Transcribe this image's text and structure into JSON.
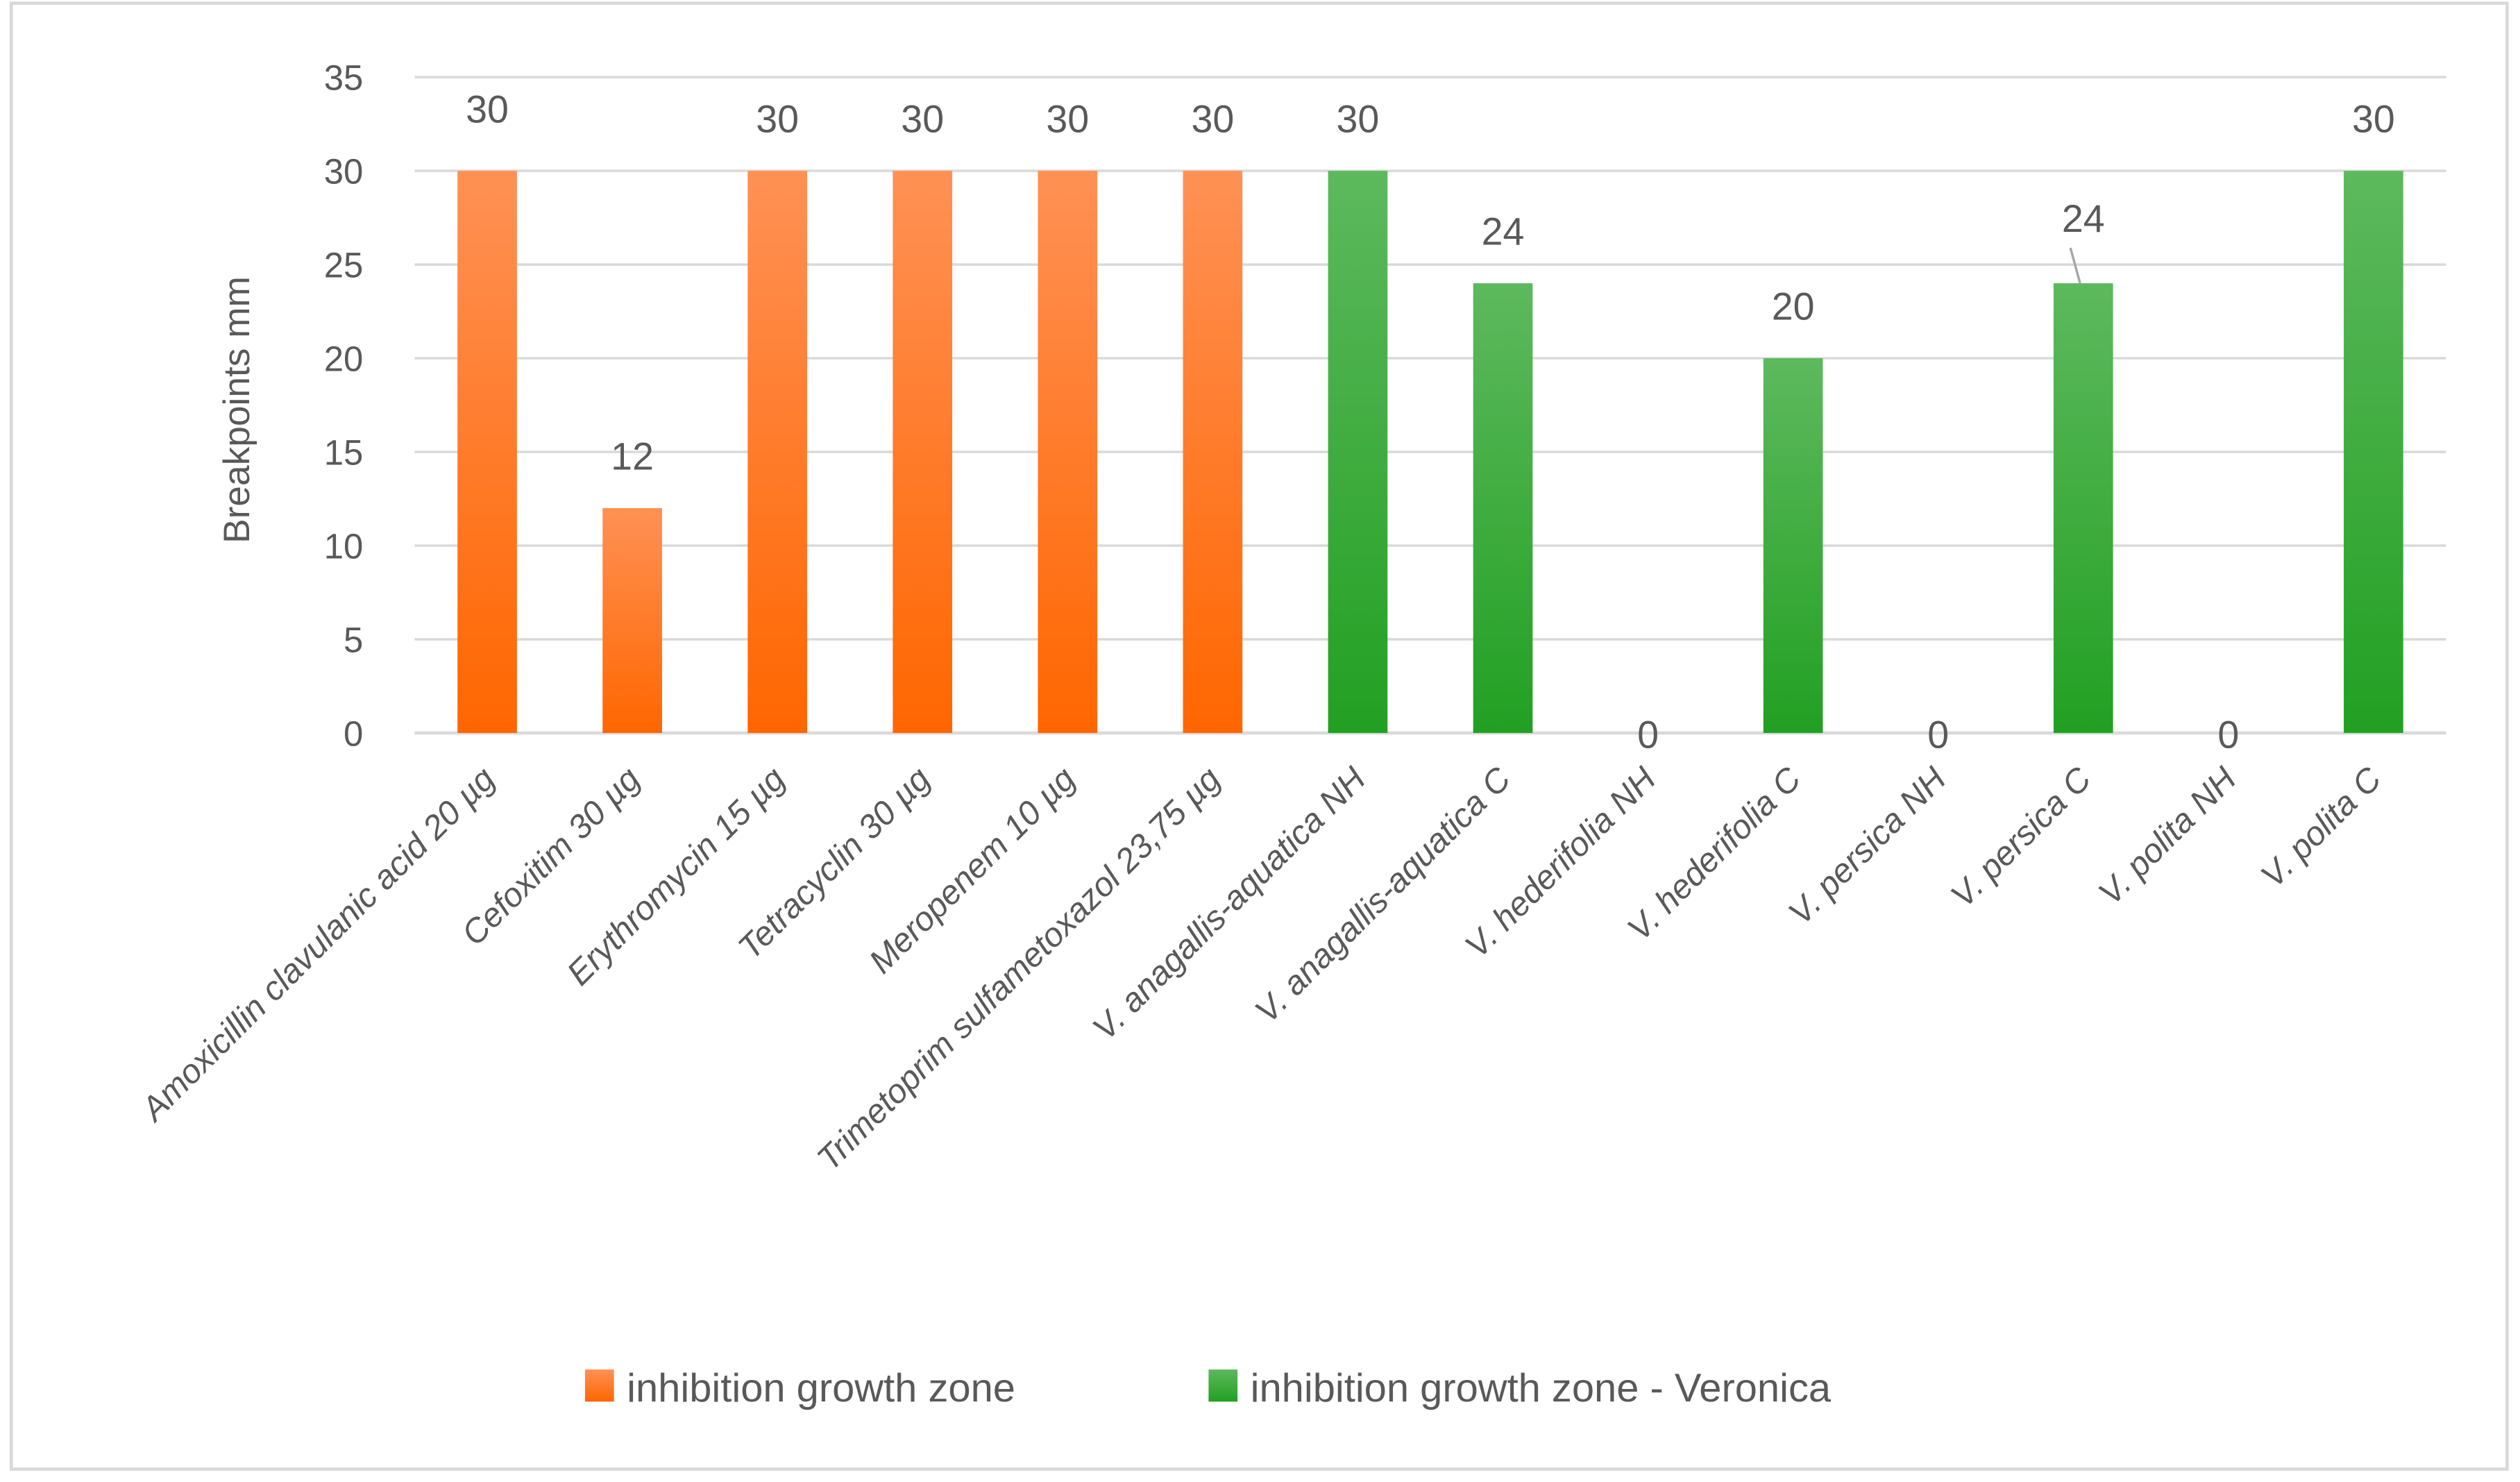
{
  "chart_data": {
    "type": "bar",
    "title": "",
    "xlabel": "",
    "ylabel": "Breakpoints mm",
    "ylim": [
      0,
      35
    ],
    "yticks": [
      0,
      5,
      10,
      15,
      20,
      25,
      30,
      35
    ],
    "grid": true,
    "legend_position": "bottom",
    "categories": [
      "Amoxicillin clavulanic acid 20 µg",
      "Cefoxitim 30 µg",
      "Erythromycin 15 µg",
      "Tetracyclin 30  µg",
      "Meropenem 10 µg",
      "Trimetoprim sulfametoxazol 23,75 µg",
      "V. anagallis-aquatica NH",
      "V. anagallis-aquatica C",
      "V. hederifolia NH",
      "V. hederifolia C",
      "V. persica NH",
      "V. persica C",
      "V. polita NH",
      "V. polita C"
    ],
    "values": [
      30,
      12,
      30,
      30,
      30,
      30,
      30,
      24,
      0,
      20,
      0,
      24,
      0,
      30
    ],
    "series_index": [
      0,
      0,
      0,
      0,
      0,
      0,
      1,
      1,
      1,
      1,
      1,
      1,
      1,
      1
    ],
    "series": [
      {
        "name": "inhibition growth zone",
        "color_top": "#FF9155",
        "color_bottom": "#FF6600"
      },
      {
        "name": "inhibition growth zone - Veronica",
        "color_top": "#5DB95D",
        "color_bottom": "#22A022"
      }
    ]
  }
}
